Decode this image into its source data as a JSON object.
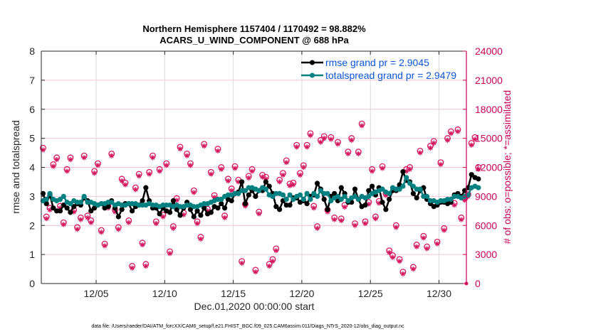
{
  "chart_data": {
    "type": "line",
    "title": "Northern Hemisphere 1157404 / 1170492 = 98.882%",
    "subtitle": "ACARS_U_WIND_COMPONENT @ 688 hPa",
    "xlabel": "Dec.01,2020 00:00:00 start",
    "ylabel": "rmse and totalspread",
    "ylabel_right": "# of obs: o=possible; *=assimilated",
    "footnote": "data file: /Users/raeder/DAI/ATM_forcXX/CAM6_setup/f.e21.FHIST_BGC.f09_025.CAM6assim.011/Diags_NTrS_2020-12/obs_diag_output.nc",
    "x_units": "days since Dec.01,2020 00:00:00",
    "x_step_days": 0.25,
    "xlim": [
      0,
      31
    ],
    "ylim": [
      0,
      8
    ],
    "ylim_right": [
      0,
      24000
    ],
    "grid": true,
    "legend_position": "top-right",
    "xticks": [
      {
        "value": 4,
        "label": "12/05"
      },
      {
        "value": 9,
        "label": "12/10"
      },
      {
        "value": 14,
        "label": "12/15"
      },
      {
        "value": 19,
        "label": "12/20"
      },
      {
        "value": 24,
        "label": "12/25"
      },
      {
        "value": 29,
        "label": "12/30"
      }
    ],
    "yticks": [
      "0",
      "1",
      "2",
      "3",
      "4",
      "5",
      "6",
      "7",
      "8"
    ],
    "yticks_right": [
      "0",
      "3000",
      "6000",
      "9000",
      "12000",
      "15000",
      "18000",
      "21000",
      "24000"
    ],
    "colors": {
      "rmse": "#000000",
      "totalspread": "#008080",
      "obs": "#d6145f",
      "legend_text": "#0a55d8",
      "right_axis": "#c8005a",
      "grid": "#f2c4d4",
      "vgrid": "#d9d9d9"
    },
    "series": [
      {
        "name": "rmse grand pr = 2.9045",
        "axis": "left",
        "values": [
          3.1,
          2.75,
          3.05,
          2.6,
          2.5,
          2.5,
          2.7,
          2.6,
          2.45,
          2.65,
          2.75,
          2.7,
          2.95,
          2.85,
          2.5,
          2.6,
          2.7,
          2.75,
          2.6,
          2.65,
          2.85,
          2.6,
          2.3,
          2.55,
          2.75,
          2.75,
          2.5,
          2.65,
          2.7,
          2.85,
          3.3,
          2.85,
          2.6,
          2.6,
          2.4,
          2.6,
          2.5,
          2.45,
          2.85,
          2.55,
          2.35,
          2.6,
          2.8,
          2.55,
          2.3,
          2.5,
          2.35,
          2.6,
          2.4,
          2.45,
          2.65,
          2.6,
          2.75,
          2.6,
          2.9,
          2.85,
          3.1,
          3.15,
          3.5,
          2.75,
          3.05,
          3.2,
          3.0,
          3.2,
          3.2,
          3.5,
          3.35,
          3.1,
          2.65,
          2.55,
          2.85,
          2.7,
          2.7,
          2.95,
          2.95,
          2.8,
          2.85,
          2.75,
          3.0,
          3.05,
          3.45,
          3.25,
          2.9,
          2.55,
          3.0,
          3.1,
          2.85,
          3.3,
          3.1,
          2.8,
          2.8,
          3.25,
          2.9,
          2.65,
          2.7,
          3.2,
          3.35,
          3.05,
          3.3,
          2.8,
          2.55,
          2.9,
          3.2,
          3.2,
          3.4,
          3.85,
          3.55,
          3.5,
          3.1,
          2.95,
          3.2,
          3.3,
          2.9,
          2.75,
          2.65,
          2.7,
          2.8,
          2.8,
          2.75,
          2.8,
          3.05,
          3.1,
          3.0,
          3.2,
          3.3,
          3.75,
          3.65,
          3.6
        ]
      },
      {
        "name": "totalspread grand pr = 2.9479",
        "axis": "left",
        "values": [
          2.85,
          2.9,
          3.1,
          2.9,
          2.85,
          2.9,
          3.0,
          2.8,
          2.75,
          2.85,
          2.8,
          2.8,
          3.0,
          2.8,
          2.8,
          2.75,
          2.7,
          2.75,
          2.75,
          2.8,
          2.8,
          2.7,
          2.75,
          2.7,
          2.7,
          2.75,
          2.75,
          2.75,
          2.7,
          2.7,
          2.7,
          2.75,
          2.7,
          2.7,
          2.65,
          2.7,
          2.7,
          2.7,
          2.65,
          2.7,
          2.65,
          2.65,
          2.7,
          2.7,
          2.65,
          2.65,
          2.7,
          2.75,
          2.75,
          2.8,
          2.85,
          2.9,
          2.9,
          3.0,
          3.05,
          3.05,
          3.1,
          3.1,
          3.2,
          3.2,
          3.3,
          3.3,
          3.25,
          3.2,
          3.3,
          3.25,
          3.05,
          3.0,
          3.1,
          3.1,
          3.05,
          2.9,
          3.05,
          2.9,
          3.0,
          3.05,
          2.9,
          3.1,
          2.9,
          3.1,
          3.0,
          3.2,
          3.1,
          3.1,
          2.85,
          2.95,
          3.0,
          2.9,
          3.0,
          2.85,
          2.95,
          3.0,
          2.9,
          3.0,
          2.95,
          3.0,
          3.1,
          3.15,
          3.2,
          3.25,
          3.15,
          3.1,
          3.3,
          3.25,
          3.25,
          3.35,
          3.65,
          3.45,
          3.35,
          3.25,
          3.25,
          3.0,
          3.0,
          2.85,
          2.85,
          2.8,
          2.85,
          2.85,
          2.9,
          2.9,
          3.0,
          3.0,
          2.95,
          3.0,
          3.05,
          3.3,
          3.35,
          3.3
        ]
      }
    ],
    "obs_possible": {
      "axis": "right",
      "name": "o=possible",
      "values": [
        14000,
        6900,
        7800,
        12300,
        13000,
        8000,
        6300,
        11800,
        13000,
        7600,
        5800,
        6800,
        13200,
        7000,
        6500,
        11600,
        12400,
        5500,
        4100,
        8000,
        13400,
        7600,
        5800,
        10800,
        10400,
        6500,
        1800,
        9900,
        11300,
        4200,
        2000,
        11500,
        13200,
        6400,
        11800,
        7100,
        12400,
        3300,
        5900,
        8800,
        14100,
        7300,
        13400,
        12400,
        9600,
        6400,
        4800,
        14400,
        7700,
        11500,
        9100,
        13900,
        12000,
        7000,
        10800,
        9800,
        12100,
        10700,
        2300,
        8200,
        11100,
        11800,
        1400,
        7400,
        11200,
        11000,
        2000,
        2500,
        3600,
        10700,
        11400,
        12700,
        10300,
        10400,
        14300,
        11400,
        12200,
        14300,
        15500,
        8000,
        5900,
        14800,
        15200,
        7600,
        15100,
        6800,
        14600,
        6700,
        8100,
        13600,
        15000,
        6200,
        13600,
        16500,
        6400,
        8400,
        11800,
        6900,
        8500,
        12100,
        9300,
        3400,
        2900,
        6000,
        2500,
        1200,
        11800,
        12000,
        1700,
        4000,
        13700,
        4900,
        3800,
        14200,
        14700,
        4300,
        12500,
        5700,
        15000,
        15700,
        8300,
        15900,
        6800,
        8800,
        9200,
        14500,
        15100,
        12000
      ]
    },
    "obs_assimilated": {
      "axis": "right",
      "name": "*=assimilated",
      "values": [
        13800,
        6700,
        7600,
        12100,
        12800,
        7800,
        6100,
        11600,
        12800,
        7400,
        5600,
        6600,
        13000,
        6800,
        6300,
        11400,
        12200,
        5300,
        3900,
        7800,
        13200,
        7400,
        5600,
        10600,
        10200,
        6300,
        1600,
        9700,
        11100,
        4000,
        1800,
        11300,
        13000,
        6200,
        11600,
        6900,
        12200,
        3100,
        5700,
        8600,
        13900,
        7100,
        13200,
        12200,
        9400,
        6200,
        4600,
        14200,
        7500,
        11300,
        8900,
        13700,
        11800,
        6800,
        10600,
        9600,
        11900,
        10500,
        2100,
        8000,
        10900,
        11600,
        1200,
        7200,
        11000,
        10800,
        1800,
        2300,
        3400,
        10500,
        11200,
        12500,
        10100,
        10200,
        14100,
        11200,
        12000,
        14100,
        15300,
        7800,
        5700,
        14600,
        15000,
        7400,
        14900,
        6600,
        14400,
        6500,
        7900,
        13400,
        14800,
        6000,
        13400,
        16300,
        6200,
        8200,
        11600,
        6700,
        8300,
        11900,
        9100,
        3200,
        2700,
        5800,
        2300,
        1000,
        11600,
        11800,
        1500,
        3800,
        13500,
        4700,
        3600,
        14000,
        14500,
        4100,
        12300,
        5500,
        14800,
        15500,
        8100,
        15700,
        6600,
        8600,
        9000,
        14300,
        14900,
        11800
      ]
    }
  }
}
